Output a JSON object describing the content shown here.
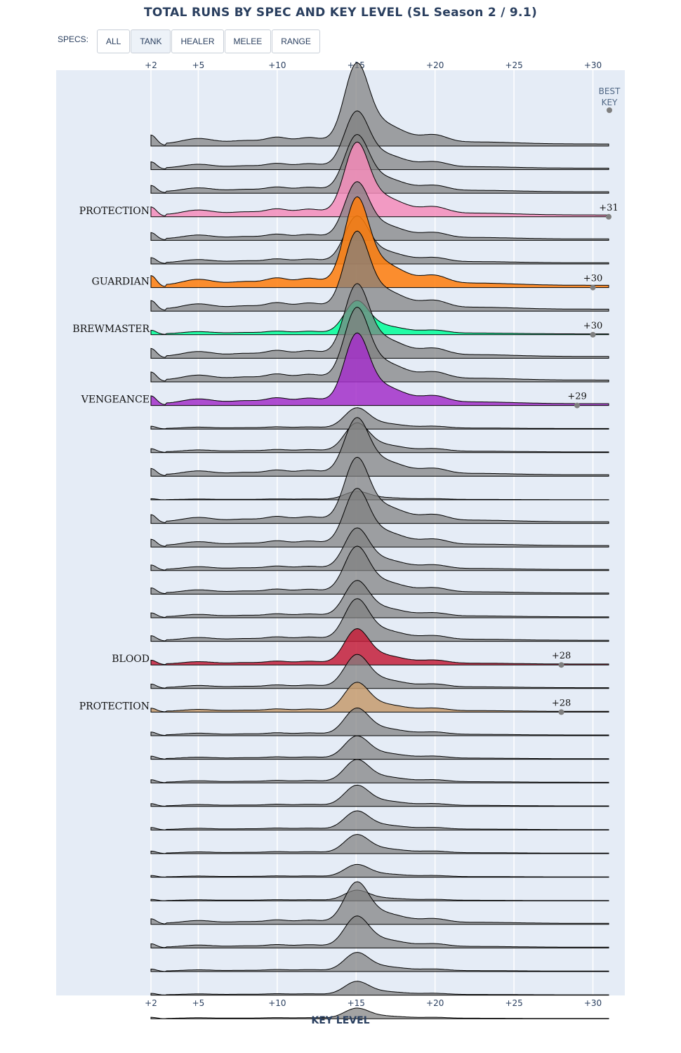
{
  "title": "TOTAL RUNS BY SPEC AND KEY LEVEL (SL Season 2 / 9.1)",
  "filter": {
    "label": "SPECS:",
    "buttons": [
      {
        "label": "ALL",
        "active": false
      },
      {
        "label": "TANK",
        "active": true
      },
      {
        "label": "HEALER",
        "active": false
      },
      {
        "label": "MELEE",
        "active": false
      },
      {
        "label": "RANGE",
        "active": false
      }
    ]
  },
  "chart_data": {
    "type": "ridgeline",
    "xlabel": "KEY LEVEL",
    "x_ticks": [
      2,
      5,
      10,
      15,
      20,
      25,
      30
    ],
    "x_tick_labels": [
      "+2",
      "+5",
      "+10",
      "+15",
      "+20",
      "+25",
      "+30"
    ],
    "xlim": [
      2,
      31
    ],
    "best_key_header": [
      "BEST",
      "KEY"
    ],
    "gray_color": "#7f7f7f",
    "rows": [
      {
        "label": "",
        "scale": 0.78,
        "highlight": false
      },
      {
        "label": "",
        "scale": 0.55,
        "highlight": false
      },
      {
        "label": "",
        "scale": 0.55,
        "highlight": false
      },
      {
        "label": "PROTECTION",
        "scale": 0.7,
        "highlight": true,
        "color": "#f48cba",
        "best_key": 31,
        "best_label": "+31"
      },
      {
        "label": "",
        "scale": 0.55,
        "highlight": false
      },
      {
        "label": "",
        "scale": 0.45,
        "highlight": false
      },
      {
        "label": "GUARDIAN",
        "scale": 0.85,
        "highlight": true,
        "color": "#ff7c0a",
        "best_key": 30,
        "best_label": "+30"
      },
      {
        "label": "",
        "scale": 0.75,
        "highlight": false
      },
      {
        "label": "BREWMASTER",
        "scale": 0.32,
        "highlight": true,
        "color": "#00ff98",
        "best_key": 30,
        "best_label": "+30"
      },
      {
        "label": "",
        "scale": 0.7,
        "highlight": false
      },
      {
        "label": "",
        "scale": 0.7,
        "highlight": false
      },
      {
        "label": "VENGEANCE",
        "scale": 0.68,
        "highlight": true,
        "color": "#a330c9",
        "best_key": 29,
        "best_label": "+29"
      },
      {
        "label": "",
        "scale": 0.2,
        "highlight": false
      },
      {
        "label": "",
        "scale": 0.28,
        "highlight": false
      },
      {
        "label": "",
        "scale": 0.55,
        "highlight": false
      },
      {
        "label": "",
        "scale": 0.08,
        "highlight": false
      },
      {
        "label": "",
        "scale": 0.62,
        "highlight": false
      },
      {
        "label": "",
        "scale": 0.55,
        "highlight": false
      },
      {
        "label": "",
        "scale": 0.4,
        "highlight": false
      },
      {
        "label": "",
        "scale": 0.45,
        "highlight": false
      },
      {
        "label": "",
        "scale": 0.35,
        "highlight": false
      },
      {
        "label": "",
        "scale": 0.4,
        "highlight": false
      },
      {
        "label": "BLOOD",
        "scale": 0.34,
        "highlight": true,
        "color": "#c41e3a",
        "best_key": 28,
        "best_label": "+28"
      },
      {
        "label": "",
        "scale": 0.32,
        "highlight": false
      },
      {
        "label": "PROTECTION",
        "scale": 0.28,
        "highlight": true,
        "color": "#c69b6d",
        "best_key": 28,
        "best_label": "+28"
      },
      {
        "label": "",
        "scale": 0.26,
        "highlight": false
      },
      {
        "label": "",
        "scale": 0.22,
        "highlight": false
      },
      {
        "label": "",
        "scale": 0.22,
        "highlight": false
      },
      {
        "label": "",
        "scale": 0.2,
        "highlight": false
      },
      {
        "label": "",
        "scale": 0.18,
        "highlight": false
      },
      {
        "label": "",
        "scale": 0.18,
        "highlight": false
      },
      {
        "label": "",
        "scale": 0.12,
        "highlight": false
      },
      {
        "label": "",
        "scale": 0.1,
        "highlight": false
      },
      {
        "label": "",
        "scale": 0.4,
        "highlight": false
      },
      {
        "label": "",
        "scale": 0.3,
        "highlight": false
      },
      {
        "label": "",
        "scale": 0.18,
        "highlight": false
      },
      {
        "label": "",
        "scale": 0.13,
        "highlight": false
      },
      {
        "label": "",
        "scale": 0.1,
        "highlight": false
      }
    ]
  }
}
